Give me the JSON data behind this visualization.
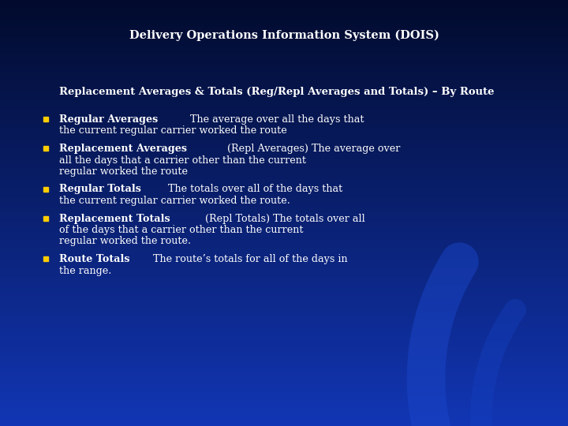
{
  "title": "Delivery Operations Information System (DOIS)",
  "title_color": "#ffffff",
  "title_fontsize": 10.5,
  "bullet_color": "#ffcc00",
  "text_color": "#ffffff",
  "header_line": "Replacement Averages & Totals (Reg/Repl Averages and Totals) – By Route",
  "bullets": [
    {
      "bold": "Regular Averages",
      "normal": " The average over all the days that the current regular carrier worked the route"
    },
    {
      "bold": "Replacement Averages",
      "normal": " (Repl Averages) The average over all the days that a carrier other than the current regular worked the route"
    },
    {
      "bold": "Regular Totals",
      "normal": " The totals over all of the days that the current regular carrier worked the route."
    },
    {
      "bold": "Replacement Totals",
      "normal": " (Repl Totals) The totals over all of the days that a carrier other than the current regular worked the route."
    },
    {
      "bold": "Route Totals",
      "normal": " The route’s totals for all of the days in the range."
    }
  ],
  "bg_top": "#020B2D",
  "bg_mid": "#0A1F6E",
  "bg_bottom": "#1236B5",
  "swirl_color": "#1540C0"
}
